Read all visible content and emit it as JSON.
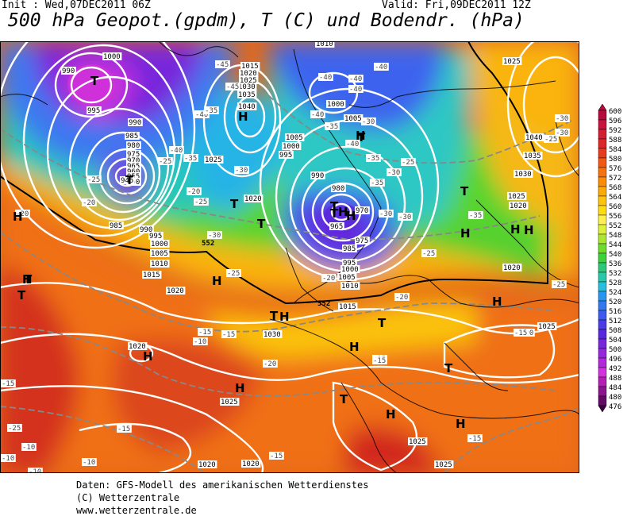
{
  "header": {
    "init": "Init : Wed,07DEC2011 06Z",
    "valid": "Valid: Fri,09DEC2011 12Z",
    "title": "500 hPa Geopot.(gpdm), T (C) und Bodendr. (hPa)"
  },
  "legend": {
    "values": [
      "600",
      "596",
      "592",
      "588",
      "584",
      "580",
      "576",
      "572",
      "568",
      "564",
      "560",
      "556",
      "552",
      "548",
      "544",
      "540",
      "536",
      "532",
      "528",
      "524",
      "520",
      "516",
      "512",
      "508",
      "504",
      "500",
      "496",
      "492",
      "488",
      "484",
      "480",
      "476"
    ],
    "colors": [
      "#b40a3c",
      "#c8143c",
      "#d21e32",
      "#dc2828",
      "#e63c1e",
      "#f05a14",
      "#f5730f",
      "#fa8c0a",
      "#fcaa0a",
      "#fdc30f",
      "#fddc14",
      "#fdf050",
      "#dcf03c",
      "#aae632",
      "#6edc2d",
      "#3cd23c",
      "#2dc878",
      "#28c8aa",
      "#28bedc",
      "#2896f0",
      "#3278f0",
      "#3c5af0",
      "#4b3ce6",
      "#5a28dc",
      "#7828dc",
      "#9628dc",
      "#b428dc",
      "#d232dc",
      "#b41eb4",
      "#8c148c",
      "#640a64",
      "#3c003c"
    ]
  },
  "map": {
    "pressure_labels": [
      {
        "text": "1000"
      },
      {
        "text": "990"
      },
      {
        "text": "995"
      },
      {
        "text": "990"
      },
      {
        "text": "985"
      },
      {
        "text": "980"
      },
      {
        "text": "975"
      },
      {
        "text": "970"
      },
      {
        "text": "965"
      },
      {
        "text": "960"
      },
      {
        "text": "955"
      },
      {
        "text": "950"
      },
      {
        "text": "945"
      },
      {
        "text": "985"
      },
      {
        "text": "990"
      },
      {
        "text": "995"
      },
      {
        "text": "1000"
      },
      {
        "text": "1005"
      },
      {
        "text": "1010"
      },
      {
        "text": "1015"
      },
      {
        "text": "1020"
      },
      {
        "text": "1025"
      },
      {
        "text": "1015"
      },
      {
        "text": "1020"
      },
      {
        "text": "1025"
      },
      {
        "text": "1030"
      },
      {
        "text": "1035"
      },
      {
        "text": "1040"
      },
      {
        "text": "1010"
      },
      {
        "text": "1000"
      },
      {
        "text": "1005"
      },
      {
        "text": "1005"
      },
      {
        "text": "1000"
      },
      {
        "text": "995"
      },
      {
        "text": "990"
      },
      {
        "text": "980"
      },
      {
        "text": "970"
      },
      {
        "text": "965"
      },
      {
        "text": "975"
      },
      {
        "text": "985"
      },
      {
        "text": "995"
      },
      {
        "text": "1000"
      },
      {
        "text": "1005"
      },
      {
        "text": "1010"
      },
      {
        "text": "1015"
      },
      {
        "text": "1020"
      },
      {
        "text": "1020"
      },
      {
        "text": "1030"
      },
      {
        "text": "1025"
      },
      {
        "text": "1020"
      },
      {
        "text": "1025"
      },
      {
        "text": "1025"
      },
      {
        "text": "1025"
      },
      {
        "text": "1040"
      },
      {
        "text": "1035"
      },
      {
        "text": "1030"
      },
      {
        "text": "1025"
      },
      {
        "text": "1020"
      },
      {
        "text": "1020"
      },
      {
        "text": "1025"
      },
      {
        "text": "1020"
      }
    ],
    "temp_labels": [
      {
        "text": "-45"
      },
      {
        "text": "-45"
      },
      {
        "text": "-40"
      },
      {
        "text": "-35"
      },
      {
        "text": "-40"
      },
      {
        "text": "-35"
      },
      {
        "text": "-30"
      },
      {
        "text": "-25"
      },
      {
        "text": "-30"
      },
      {
        "text": "-40"
      },
      {
        "text": "-40"
      },
      {
        "text": "-40"
      },
      {
        "text": "-40"
      },
      {
        "text": "-40"
      },
      {
        "text": "-40"
      },
      {
        "text": "-35"
      },
      {
        "text": "-30"
      },
      {
        "text": "-35"
      },
      {
        "text": "-30"
      },
      {
        "text": "-25"
      },
      {
        "text": "-30"
      },
      {
        "text": "-25"
      },
      {
        "text": "-20"
      },
      {
        "text": "-20"
      },
      {
        "text": "-25"
      },
      {
        "text": "-25"
      },
      {
        "text": "-20"
      },
      {
        "text": "-20"
      },
      {
        "text": "-15"
      },
      {
        "text": "-10"
      },
      {
        "text": "-20"
      },
      {
        "text": "-15"
      },
      {
        "text": "-15"
      },
      {
        "text": "-15"
      },
      {
        "text": "-15"
      },
      {
        "text": "-10"
      },
      {
        "text": "-10"
      },
      {
        "text": "-10"
      },
      {
        "text": "-25"
      },
      {
        "text": "-30"
      },
      {
        "text": "-35"
      },
      {
        "text": "-30"
      },
      {
        "text": "-25"
      },
      {
        "text": "-25"
      },
      {
        "text": "-20"
      },
      {
        "text": "-15"
      },
      {
        "text": "-15"
      },
      {
        "text": "-20"
      },
      {
        "text": "-15"
      },
      {
        "text": "-25"
      },
      {
        "text": "-35"
      },
      {
        "text": "-30"
      },
      {
        "text": "-15"
      },
      {
        "text": "-10"
      }
    ],
    "line_labels": [
      {
        "text": "552"
      },
      {
        "text": "552"
      }
    ],
    "highs": [
      "H",
      "H",
      "H",
      "H",
      "H",
      "H",
      "H",
      "H",
      "H",
      "H",
      "H",
      "H",
      "H",
      "H",
      "H",
      "H",
      "H"
    ],
    "lows": [
      "T",
      "T",
      "T",
      "T",
      "T",
      "T",
      "T",
      "T",
      "T",
      "T",
      "T",
      "T",
      "T",
      "T"
    ]
  },
  "credits": {
    "line1": "Daten: GFS-Modell des amerikanischen Wetterdienstes",
    "line2": "(C) Wetterzentrale",
    "line3": "www.wetterzentrale.de"
  }
}
